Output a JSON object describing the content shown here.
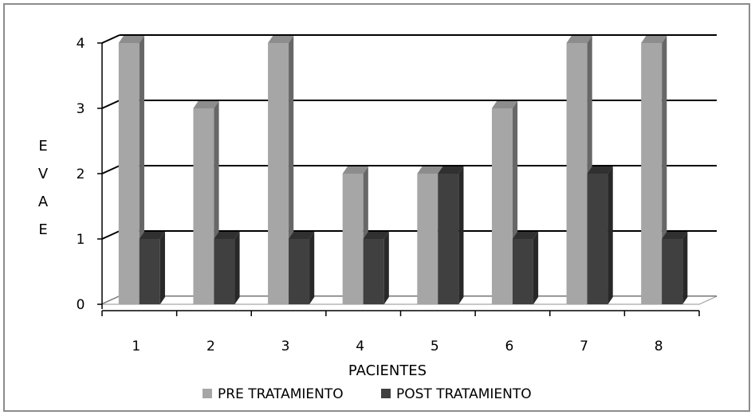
{
  "chart_data": {
    "type": "bar",
    "title": "",
    "xlabel": "PACIENTES",
    "ylabel": "EVAE",
    "categories": [
      "1",
      "2",
      "3",
      "4",
      "5",
      "6",
      "7",
      "8"
    ],
    "series": [
      {
        "name": "PRE TRATAMIENTO",
        "values": [
          4,
          3,
          4,
          2,
          2,
          3,
          4,
          4
        ],
        "color": "#a6a6a6"
      },
      {
        "name": "POST TRATAMIENTO",
        "values": [
          1,
          1,
          1,
          1,
          2,
          1,
          2,
          1
        ],
        "color": "#404040"
      }
    ],
    "ylim": [
      0,
      4
    ],
    "yticks": [
      0,
      1,
      2,
      3,
      4
    ],
    "grid": true,
    "legend": "bottom",
    "style": "3d-clustered-column"
  }
}
